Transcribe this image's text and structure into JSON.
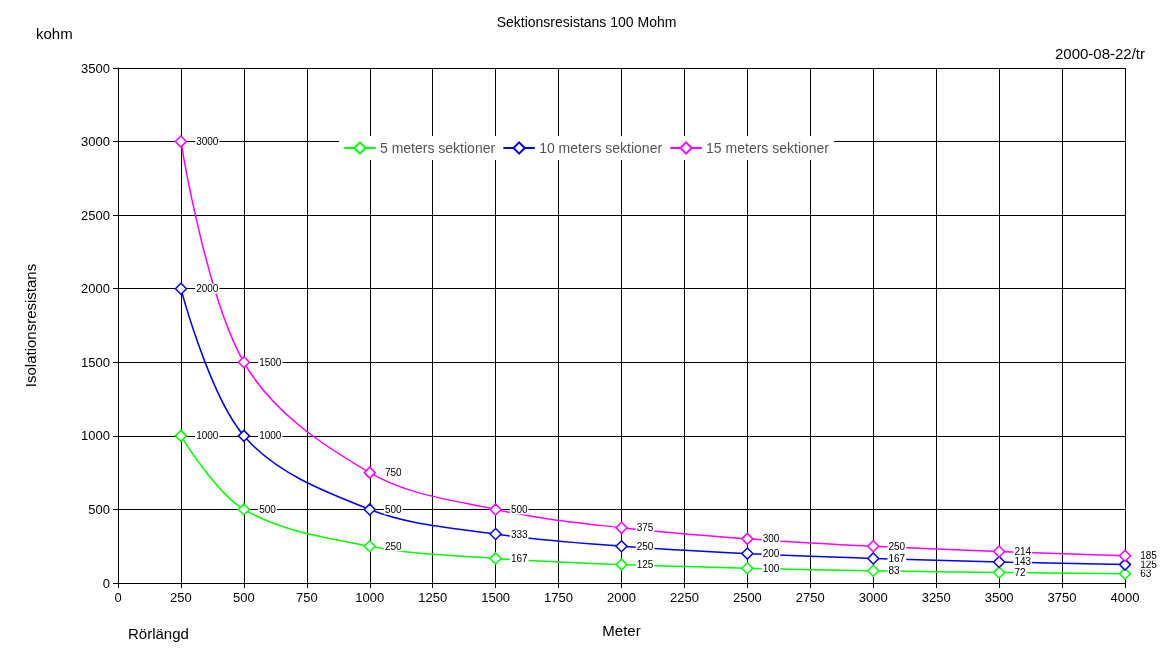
{
  "chart_data": {
    "type": "line",
    "title": "Sektionsresistans 100 Mohm",
    "xlabel": "Meter",
    "ylabel": "Isolationsresistans",
    "annotations": [
      "kohm",
      "2000-08-22/tr",
      "Rörlängd"
    ],
    "x": [
      250,
      500,
      1000,
      1500,
      2000,
      2500,
      3000,
      3500,
      4000
    ],
    "series": [
      {
        "name": "5 meters sektioner",
        "color": "#00ff00",
        "values": [
          1000,
          500,
          250,
          167,
          125,
          100,
          83,
          72,
          63
        ]
      },
      {
        "name": "10 meters sektioner",
        "color": "#0000ff",
        "values": [
          2000,
          1000,
          500,
          333,
          250,
          200,
          167,
          143,
          125
        ]
      },
      {
        "name": "15 meters sektioner",
        "color": "#ff00ff",
        "values": [
          3000,
          1500,
          750,
          500,
          375,
          300,
          250,
          214,
          185
        ]
      }
    ],
    "xlim": [
      0,
      4000
    ],
    "xticks": [
      0,
      250,
      500,
      750,
      1000,
      1250,
      1500,
      1750,
      2000,
      2250,
      2500,
      2750,
      3000,
      3250,
      3500,
      3750,
      4000
    ],
    "ylim": [
      0,
      3500
    ],
    "yticks": [
      0,
      500,
      1000,
      1500,
      2000,
      2500,
      3000,
      3500
    ],
    "grid": true,
    "legend": "top",
    "marker": "diamond",
    "line_style": "solid",
    "data_labels": true
  }
}
